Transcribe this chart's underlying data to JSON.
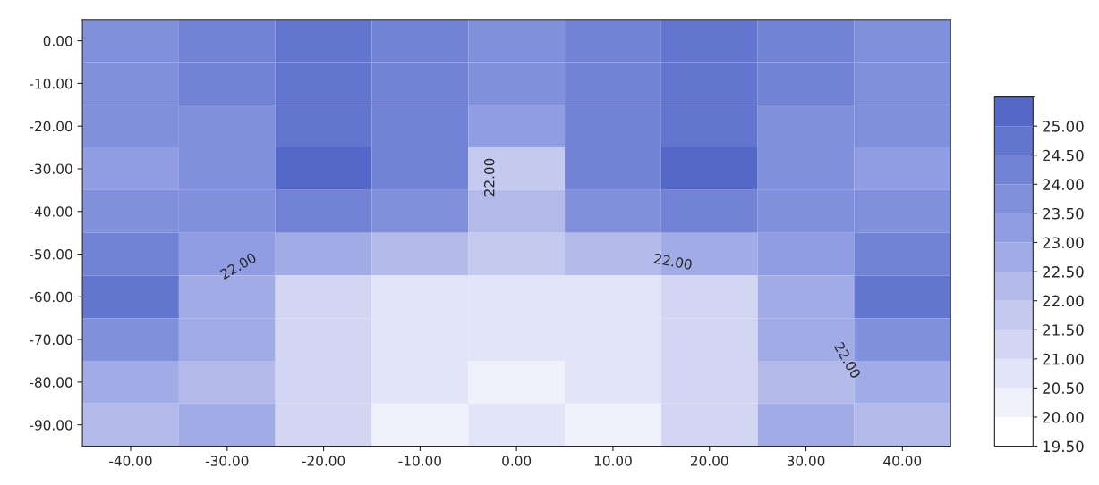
{
  "chart_data": {
    "type": "heatmap",
    "categories": [
      "-40.00",
      "-30.00",
      "-20.00",
      "-10.00",
      "0.00",
      "10.00",
      "20.00",
      "30.00",
      "40.00"
    ],
    "y_categories": [
      "0.00",
      "-10.00",
      "-20.00",
      "-30.00",
      "-40.00",
      "-50.00",
      "-60.00",
      "-70.00",
      "-80.00",
      "-90.00"
    ],
    "cells": [
      [
        23.5,
        24,
        24.5,
        24,
        23.5,
        24,
        24.5,
        24,
        23.5
      ],
      [
        23.5,
        24,
        24.5,
        24,
        23.5,
        24,
        24.5,
        24,
        23.5
      ],
      [
        23.5,
        23.5,
        24.5,
        24,
        23,
        24,
        24.5,
        23.5,
        23.5
      ],
      [
        23,
        23.5,
        25,
        24,
        21.5,
        24,
        25,
        23.5,
        23
      ],
      [
        23.5,
        23.5,
        24,
        23.5,
        22,
        23.5,
        24,
        23.5,
        23.5
      ],
      [
        24,
        23,
        22.5,
        22,
        21.5,
        22,
        22.5,
        23,
        24
      ],
      [
        24.5,
        22.5,
        21,
        20.5,
        20.5,
        20.5,
        21,
        22.5,
        24.5
      ],
      [
        23.5,
        22.5,
        21,
        20.5,
        20.5,
        20.5,
        21,
        22.5,
        23.5
      ],
      [
        22.5,
        22,
        21,
        20.5,
        20,
        20.5,
        21,
        22,
        22.5
      ],
      [
        22,
        22.5,
        21,
        20,
        20.5,
        20,
        21,
        22.5,
        22
      ]
    ],
    "clim": [
      19.5,
      25.5
    ],
    "cticks": [
      {
        "value": 19.5,
        "label": "19.50"
      },
      {
        "value": 20,
        "label": "20.00"
      },
      {
        "value": 20.5,
        "label": "20.50"
      },
      {
        "value": 21,
        "label": "21.00"
      },
      {
        "value": 21.5,
        "label": "21.50"
      },
      {
        "value": 22,
        "label": "22.00"
      },
      {
        "value": 22.5,
        "label": "22.50"
      },
      {
        "value": 23,
        "label": "23.00"
      },
      {
        "value": 23.5,
        "label": "23.50"
      },
      {
        "value": 24,
        "label": "24.00"
      },
      {
        "value": 24.5,
        "label": "24.50"
      },
      {
        "value": 25,
        "label": "25.00"
      }
    ],
    "annotations": [
      "22.00",
      "22.00",
      "22.00",
      "22.00"
    ],
    "grid": false
  }
}
